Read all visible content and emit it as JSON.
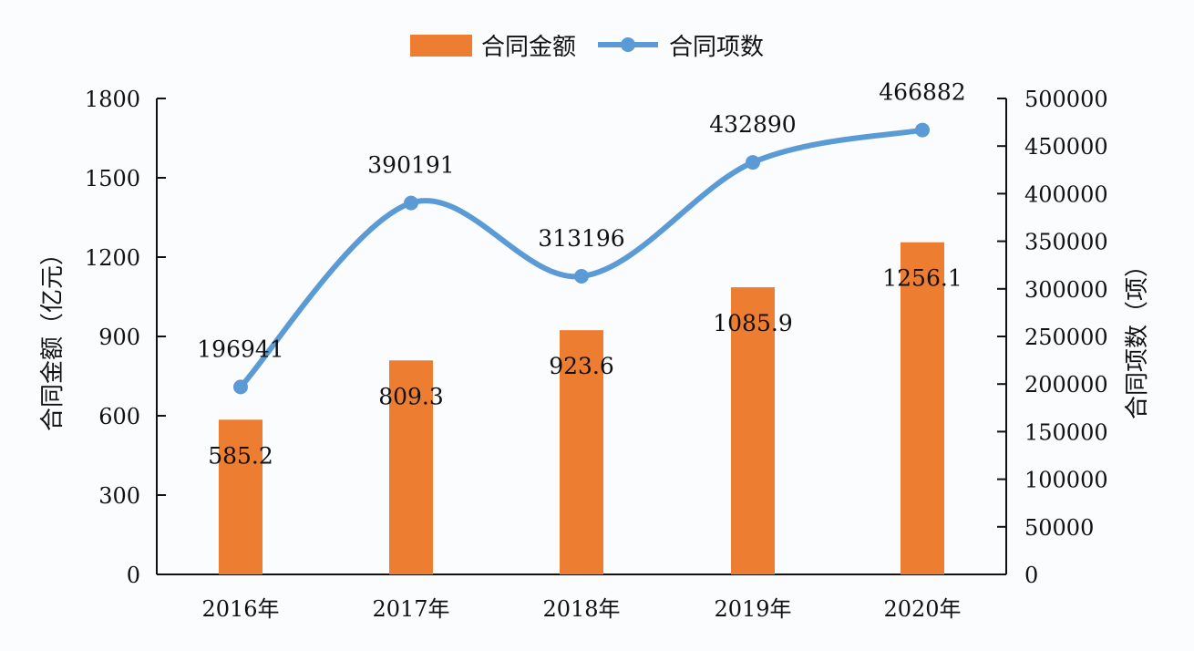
{
  "chart_data": {
    "type": "bar+line",
    "categories": [
      "2016年",
      "2017年",
      "2018年",
      "2019年",
      "2020年"
    ],
    "series": [
      {
        "name": "合同金额",
        "type": "bar",
        "axis": "left",
        "color": "#ed7d31",
        "values": [
          585.2,
          809.3,
          923.6,
          1085.9,
          1256.1
        ],
        "labels": [
          "585.2",
          "809.3",
          "923.6",
          "1085.9",
          "1256.1"
        ]
      },
      {
        "name": "合同项数",
        "type": "line",
        "axis": "right",
        "color": "#5b9bd5",
        "smooth": true,
        "values": [
          196941,
          390191,
          313196,
          432890,
          466882
        ],
        "labels": [
          "196941",
          "390191",
          "313196",
          "432890",
          "466882"
        ]
      }
    ],
    "ylabel": "合同金额（亿元）",
    "y2label": "合同项数（项）",
    "ylim": [
      0,
      1800
    ],
    "yticks": [
      "0",
      "300",
      "600",
      "900",
      "1200",
      "1500",
      "1800"
    ],
    "y2lim": [
      0,
      500000
    ],
    "y2ticks": [
      "0",
      "50000",
      "100000",
      "150000",
      "200000",
      "250000",
      "300000",
      "350000",
      "400000",
      "450000",
      "500000"
    ],
    "legend": "top",
    "grid": false
  }
}
